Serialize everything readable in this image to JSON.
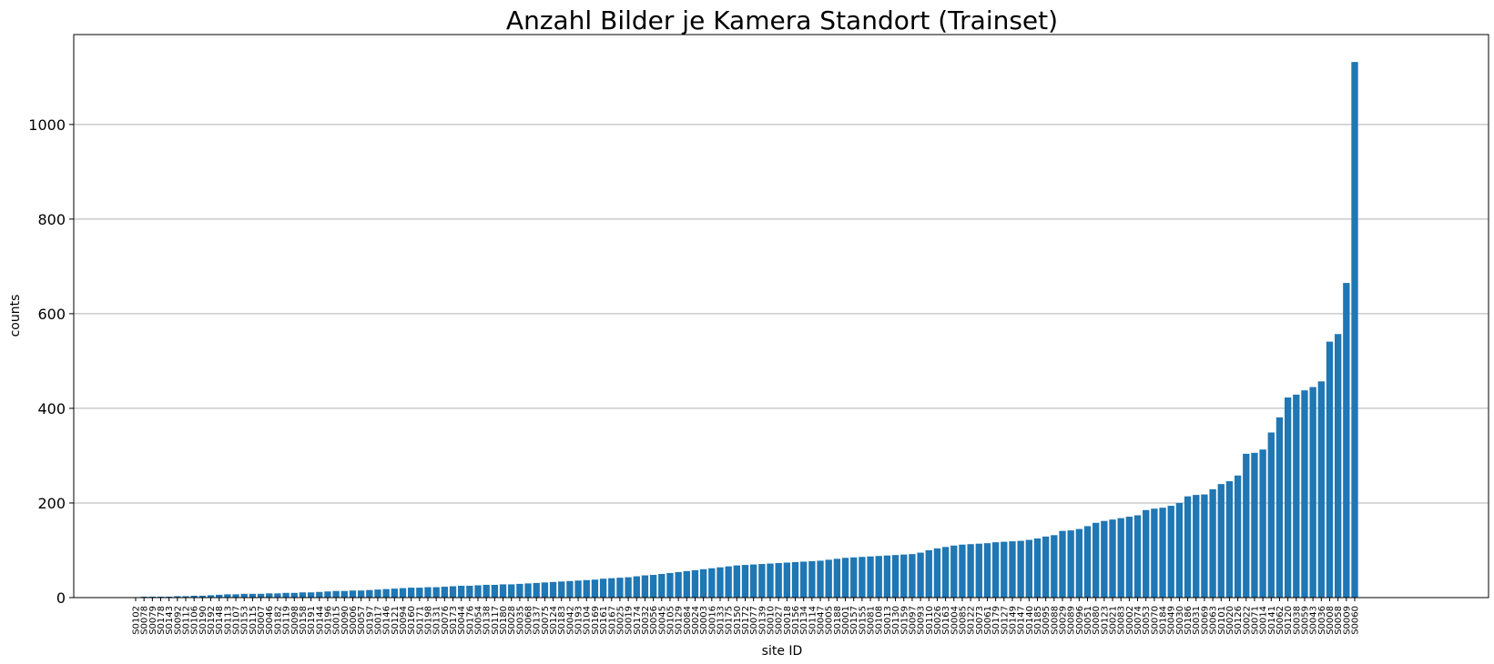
{
  "chart_data": {
    "type": "bar",
    "title": "Anzahl Bilder je Kamera Standort (Trainset)",
    "xlabel": "site ID",
    "ylabel": "counts",
    "ylim": [
      0,
      1190
    ],
    "yticks": [
      0,
      200,
      400,
      600,
      800,
      1000
    ],
    "grid": "y",
    "bar_color": "#1f77b4",
    "categories": [
      "S0102",
      "S0078",
      "S0079",
      "S0178",
      "S0143",
      "S0092",
      "S0112",
      "S0106",
      "S0190",
      "S0192",
      "S0148",
      "S0113",
      "S0107",
      "S0153",
      "S0115",
      "S0007",
      "S0046",
      "S0182",
      "S0119",
      "S0098",
      "S0158",
      "S0191",
      "S0144",
      "S0196",
      "S0015",
      "S0090",
      "S0006",
      "S0057",
      "S0197",
      "S0017",
      "S0146",
      "S0121",
      "S0094",
      "S0160",
      "S0171",
      "S0198",
      "S0131",
      "S0076",
      "S0173",
      "S0044",
      "S0176",
      "S0054",
      "S0138",
      "S0117",
      "S0180",
      "S0028",
      "S0035",
      "S0068",
      "S0137",
      "S0075",
      "S0124",
      "S0183",
      "S0042",
      "S0193",
      "S0104",
      "S0169",
      "S0161",
      "S0167",
      "S0025",
      "S0019",
      "S0174",
      "S0032",
      "S0056",
      "S0045",
      "S0105",
      "S0129",
      "S0084",
      "S0024",
      "S0003",
      "S0016",
      "S0133",
      "S0175",
      "S0150",
      "S0172",
      "S0077",
      "S0139",
      "S0010",
      "S0027",
      "S0018",
      "S0156",
      "S0134",
      "S0114",
      "S0047",
      "S0005",
      "S0188",
      "S0001",
      "S0157",
      "S0155",
      "S0081",
      "S0108",
      "S0013",
      "S0130",
      "S0159",
      "S0097",
      "S0093",
      "S0110",
      "S0026",
      "S0163",
      "S0004",
      "S0085",
      "S0122",
      "S0073",
      "S0061",
      "S0179",
      "S0127",
      "S0149",
      "S0147",
      "S0140",
      "S0185",
      "S0095",
      "S0088",
      "S0029",
      "S0089",
      "S0096",
      "S0051",
      "S0080",
      "S0123",
      "S0021",
      "S0083",
      "S0002",
      "S0074",
      "S0053",
      "S0070",
      "S0184",
      "S0049",
      "S0030",
      "S0186",
      "S0031",
      "S0069",
      "S0063",
      "S0101",
      "S0020",
      "S0126",
      "S0022",
      "S0071",
      "S0014",
      "S0141",
      "S0062",
      "S0120",
      "S0038",
      "S0059",
      "S0043",
      "S0036",
      "S0008",
      "S0058",
      "S0009",
      "S0060"
    ],
    "values": [
      1,
      2,
      2,
      2,
      2,
      3,
      3,
      4,
      4,
      5,
      6,
      7,
      7,
      8,
      8,
      8,
      9,
      9,
      10,
      10,
      11,
      11,
      12,
      13,
      14,
      14,
      15,
      15,
      16,
      17,
      18,
      19,
      20,
      21,
      21,
      22,
      22,
      23,
      24,
      25,
      25,
      26,
      27,
      27,
      28,
      28,
      29,
      30,
      31,
      32,
      33,
      34,
      35,
      36,
      37,
      38,
      40,
      41,
      42,
      43,
      45,
      47,
      48,
      50,
      52,
      54,
      56,
      58,
      60,
      62,
      64,
      66,
      68,
      69,
      70,
      71,
      72,
      73,
      74,
      75,
      76,
      77,
      78,
      80,
      82,
      84,
      85,
      86,
      87,
      88,
      89,
      90,
      91,
      92,
      95,
      100,
      104,
      107,
      110,
      112,
      113,
      114,
      115,
      117,
      118,
      119,
      120,
      122,
      125,
      129,
      132,
      141,
      142,
      145,
      151,
      158,
      162,
      165,
      168,
      171,
      174,
      185,
      188,
      190,
      194,
      200,
      214,
      217,
      218,
      229,
      240,
      246,
      258,
      304,
      306,
      313,
      349,
      381,
      423,
      429,
      438,
      445,
      457,
      541,
      557,
      665,
      1132
    ]
  }
}
